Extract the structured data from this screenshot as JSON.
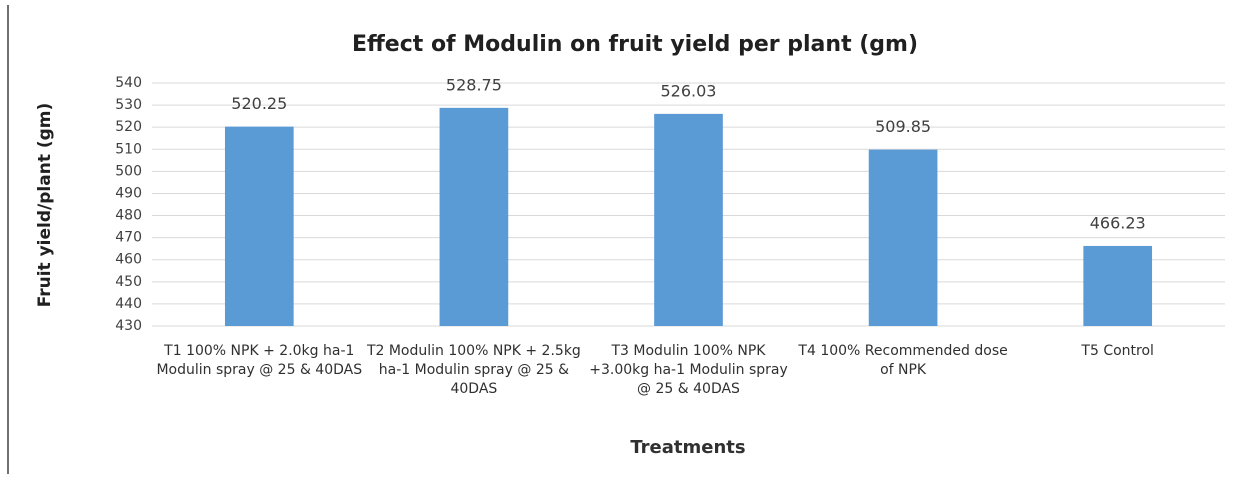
{
  "chart_data": {
    "type": "bar",
    "title": "Effect of Modulin on fruit yield per plant (gm)",
    "x_label": "Treatments",
    "y_label": "Fruit yield/plant (gm)",
    "categories": [
      "T1  100% NPK + 2.0kg ha-1 Modulin spray @ 25 & 40DAS",
      "T2  Modulin 100% NPK + 2.5kg ha-1 Modulin spray @ 25 & 40DAS",
      "T3  Modulin  100% NPK +3.00kg ha-1 Modulin spray @ 25 & 40DAS",
      "T4  100% Recommended dose of NPK",
      "T5 Control"
    ],
    "values": [
      520.25,
      528.75,
      526.03,
      509.85,
      466.23
    ],
    "color": "#5b9bd5",
    "ylim": [
      430,
      540
    ],
    "yticks": [
      430,
      440,
      450,
      460,
      470,
      480,
      490,
      500,
      510,
      520,
      530,
      540
    ],
    "grid": true
  }
}
